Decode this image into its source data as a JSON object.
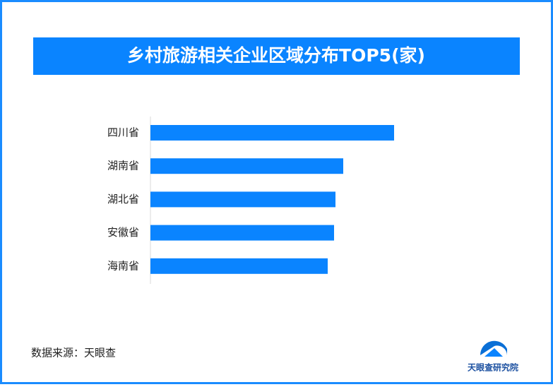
{
  "chart_data": {
    "type": "bar",
    "orientation": "horizontal",
    "title": "乡村旅游相关企业区域分布TOP5(家)",
    "categories": [
      "四川省",
      "湖南省",
      "湖北省",
      "安徽省",
      "海南省"
    ],
    "values": [
      345,
      273,
      262,
      260,
      251
    ],
    "color": "#0a84ff",
    "source": "数据来源：天眼查",
    "brand": "天眼查研究院"
  }
}
